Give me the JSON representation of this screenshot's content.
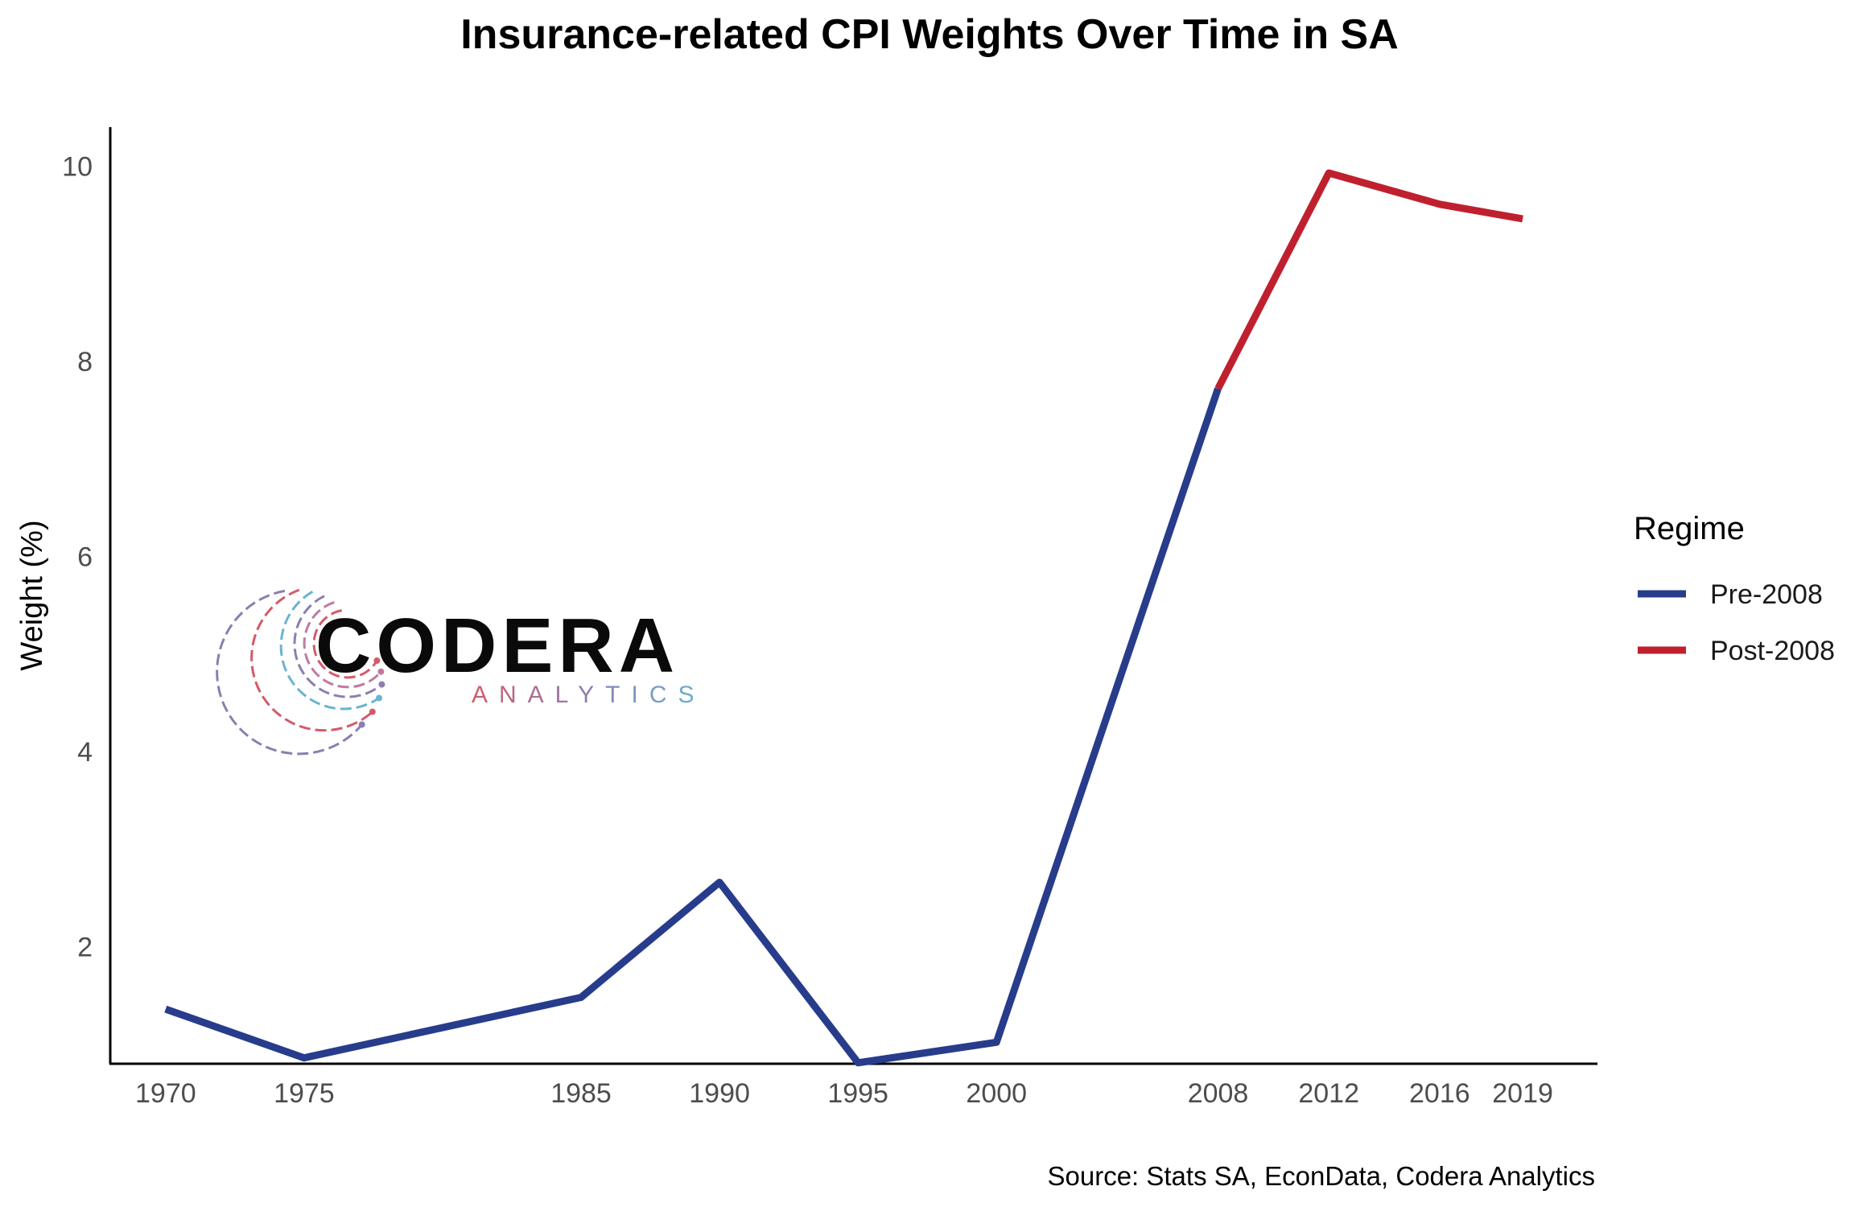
{
  "chart_data": {
    "type": "line",
    "title": "Insurance-related CPI Weights Over Time in SA",
    "xlabel": "",
    "ylabel": "Weight (%)",
    "caption": "Source: Stats SA, EconData, Codera Analytics",
    "x": [
      1970,
      1975,
      1985,
      1990,
      1995,
      2000,
      2008,
      2012,
      2016,
      2019
    ],
    "xticks": [
      "1970",
      "1975",
      "1985",
      "1990",
      "1995",
      "2000",
      "2008",
      "2012",
      "2016",
      "2019"
    ],
    "yticks": [
      2,
      4,
      6,
      8,
      10
    ],
    "ylim": [
      0.8,
      10.4
    ],
    "xlim": [
      1968,
      2021.7
    ],
    "grid": false,
    "legend": {
      "title": "Regime",
      "placement": "right"
    },
    "series": [
      {
        "name": "Pre-2008",
        "color": "#283c8c",
        "x": [
          1970,
          1975,
          1985,
          1990,
          1995,
          2000,
          2008
        ],
        "values": [
          1.36,
          0.86,
          1.48,
          2.66,
          0.81,
          1.02,
          7.72
        ]
      },
      {
        "name": "Post-2008",
        "color": "#c0202e",
        "x": [
          2008,
          2012,
          2016,
          2019
        ],
        "values": [
          7.72,
          9.93,
          9.61,
          9.46
        ]
      }
    ]
  },
  "logo": {
    "name": "CODERA",
    "tagline": "ANALYTICS"
  }
}
